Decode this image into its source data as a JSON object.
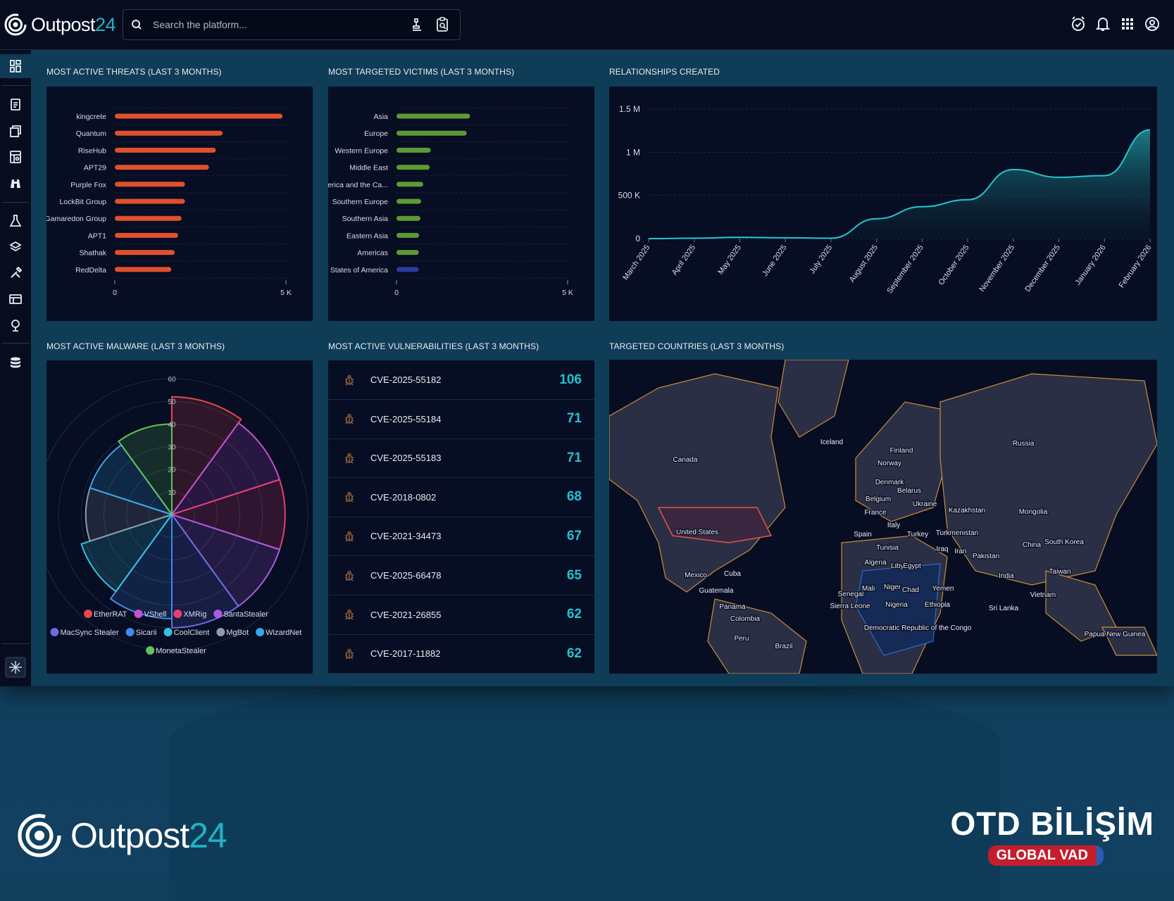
{
  "app": {
    "logo_text": "Outpost",
    "logo_num": "24",
    "search_placeholder": "Search the platform..."
  },
  "colors": {
    "threat_bar": "#e0502c",
    "victim_bar": "#5c9a35",
    "victim_bar_alt": "#2a3c9c",
    "line": "#25c6cf",
    "accent": "#20b2c3"
  },
  "panels": {
    "threats": {
      "title": "MOST ACTIVE THREATS (LAST 3 MONTHS)",
      "chart_data": {
        "type": "bar",
        "orientation": "horizontal",
        "categories": [
          "kingcrete",
          "Quantum",
          "RiseHub",
          "APT29",
          "Purple Fox",
          "LockBit Group",
          "Gamaredon Group",
          "APT1",
          "Shathak",
          "RedDelta"
        ],
        "values": [
          4900,
          3150,
          2950,
          2750,
          2050,
          2050,
          1950,
          1850,
          1750,
          1650
        ],
        "xlim": [
          0,
          5000
        ],
        "x_ticks": [
          "0",
          "5 K"
        ]
      }
    },
    "victims": {
      "title": "MOST TARGETED VICTIMS (LAST 3 MONTHS)",
      "chart_data": {
        "type": "bar",
        "orientation": "horizontal",
        "categories": [
          "Asia",
          "Europe",
          "Western Europe",
          "Middle East",
          "Latin America and the Ca...",
          "Southern Europe",
          "Southern Asia",
          "Eastern Asia",
          "Americas",
          "United States of America"
        ],
        "values": [
          2150,
          2050,
          1000,
          970,
          780,
          720,
          700,
          660,
          650,
          650
        ],
        "xlim": [
          0,
          5000
        ],
        "x_ticks": [
          "0",
          "5 K"
        ]
      }
    },
    "relationships": {
      "title": "RELATIONSHIPS CREATED",
      "chart_data": {
        "type": "area",
        "x": [
          "March 2025",
          "April 2025",
          "May 2025",
          "June 2025",
          "July 2025",
          "August 2025",
          "September 2025",
          "October 2025",
          "November 2025",
          "December 2025",
          "January 2026",
          "February 2026"
        ],
        "values": [
          0,
          5000,
          15000,
          10000,
          5000,
          230000,
          370000,
          450000,
          800000,
          710000,
          730000,
          1260000
        ],
        "ylim": [
          0,
          1500000
        ],
        "y_ticks": [
          "0",
          "500 K",
          "1 M",
          "1.5 M"
        ]
      }
    },
    "malware": {
      "title": "MOST ACTIVE MALWARE (LAST 3 MONTHS)",
      "chart_data": {
        "type": "polar-area",
        "rlim": [
          0,
          60
        ],
        "r_ticks": [
          "10",
          "20",
          "30",
          "40",
          "50",
          "60"
        ],
        "series": [
          {
            "name": "EtherRAT",
            "value": 52,
            "color": "#e5484d"
          },
          {
            "name": "VShell",
            "value": 50,
            "color": "#c44fd0"
          },
          {
            "name": "XMRig",
            "value": 50,
            "color": "#e83d73"
          },
          {
            "name": "SantaStealer",
            "value": 50,
            "color": "#a85de0"
          },
          {
            "name": "MacSync Stealer",
            "value": 50,
            "color": "#6a6ce0"
          },
          {
            "name": "Sicarii",
            "value": 46,
            "color": "#3f8be8"
          },
          {
            "name": "CoolClient",
            "value": 42,
            "color": "#35c2df"
          },
          {
            "name": "MgBot",
            "value": 38,
            "color": "#8f9aa6"
          },
          {
            "name": "WizardNet",
            "value": 38,
            "color": "#36a8e8"
          },
          {
            "name": "MonetaStealer",
            "value": 40,
            "color": "#62c25b"
          }
        ]
      }
    },
    "vulns": {
      "title": "MOST ACTIVE VULNERABILITIES (LAST 3 MONTHS)",
      "items": [
        {
          "id": "CVE-2025-55182",
          "count": "106"
        },
        {
          "id": "CVE-2025-55184",
          "count": "71"
        },
        {
          "id": "CVE-2025-55183",
          "count": "71"
        },
        {
          "id": "CVE-2018-0802",
          "count": "68"
        },
        {
          "id": "CVE-2021-34473",
          "count": "67"
        },
        {
          "id": "CVE-2025-66478",
          "count": "65"
        },
        {
          "id": "CVE-2021-26855",
          "count": "62"
        },
        {
          "id": "CVE-2017-11882",
          "count": "62"
        }
      ]
    },
    "countries": {
      "title": "TARGETED COUNTRIES (LAST 3 MONTHS)",
      "labels": [
        "Iceland",
        "Russia",
        "Canada",
        "Finland",
        "Norway",
        "Denmark",
        "Belarus",
        "Belgium",
        "Ukraine",
        "France",
        "Kazakhstan",
        "Mongolia",
        "Italy",
        "United States",
        "Spain",
        "Turkey",
        "Turkmenistan",
        "Tunisia",
        "Iran",
        "China",
        "South Korea",
        "Iraq",
        "Pakistan",
        "Algeria",
        "Libya",
        "Egypt",
        "Mexico",
        "Cuba",
        "Taiwan",
        "India",
        "Guatemala",
        "Niger",
        "Chad",
        "Senegal",
        "Mali",
        "Yemen",
        "Vietnam",
        "Sierra Leone",
        "Nigeria",
        "Ethiopia",
        "Sri Lanka",
        "Panama",
        "Colombia",
        "Democratic Republic of the Congo",
        "Papua New Guinea",
        "Peru",
        "Brazil"
      ]
    }
  },
  "footer": {
    "logo_text": "Outpost",
    "logo_num": "24",
    "partner_name": "OTD BİLİŞİM",
    "partner_tag": "GLOBAL VAD"
  }
}
